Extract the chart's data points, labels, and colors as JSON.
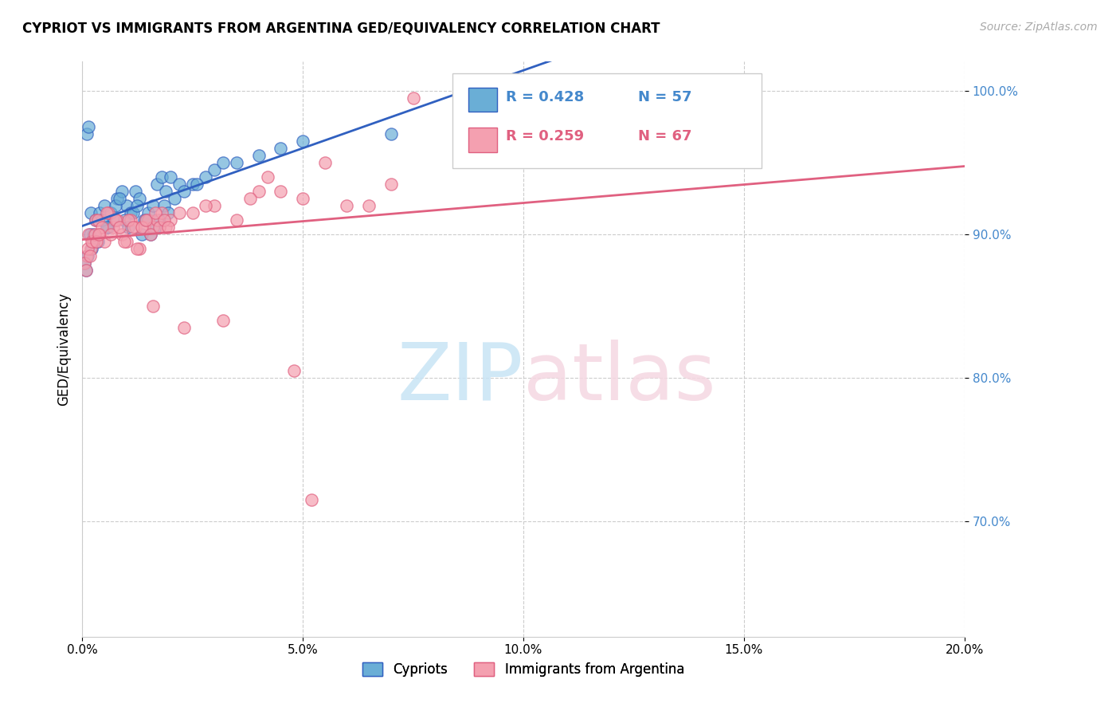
{
  "title": "CYPRIOT VS IMMIGRANTS FROM ARGENTINA GED/EQUIVALENCY CORRELATION CHART",
  "source": "Source: ZipAtlas.com",
  "ylabel": "GED/Equivalency",
  "xmin": 0.0,
  "xmax": 20.0,
  "ymin": 62.0,
  "ymax": 102.0,
  "legend_r1": "R = 0.428",
  "legend_n1": "N = 57",
  "legend_r2": "R = 0.259",
  "legend_n2": "N = 67",
  "legend_label1": "Cypriots",
  "legend_label2": "Immigrants from Argentina",
  "color_blue": "#6aaed6",
  "color_pink": "#f4a0b0",
  "color_blue_line": "#3060c0",
  "color_pink_line": "#e06080",
  "color_blue_text": "#4488cc",
  "color_pink_text": "#e06080",
  "grid_color": "#cccccc",
  "background_color": "#ffffff",
  "cypriots_x": [
    0.2,
    0.3,
    0.4,
    0.5,
    0.6,
    0.7,
    0.8,
    0.9,
    1.0,
    1.1,
    1.2,
    1.3,
    1.4,
    1.5,
    1.6,
    1.7,
    1.8,
    1.9,
    2.0,
    2.2,
    2.5,
    2.8,
    3.0,
    3.5,
    4.0,
    0.1,
    0.15,
    0.25,
    0.35,
    0.45,
    0.55,
    0.65,
    0.75,
    0.85,
    0.95,
    1.05,
    1.15,
    1.25,
    1.35,
    1.45,
    1.55,
    1.65,
    1.75,
    1.85,
    1.95,
    2.1,
    2.3,
    2.6,
    3.2,
    4.5,
    5.0,
    0.05,
    0.08,
    0.12,
    0.18,
    0.22,
    7.0
  ],
  "cypriots_y": [
    91.5,
    91.0,
    91.5,
    92.0,
    90.5,
    91.0,
    92.5,
    93.0,
    92.0,
    91.5,
    93.0,
    92.5,
    91.0,
    91.5,
    92.0,
    93.5,
    94.0,
    93.0,
    94.0,
    93.5,
    93.5,
    94.0,
    94.5,
    95.0,
    95.5,
    97.0,
    97.5,
    90.0,
    89.5,
    91.0,
    90.5,
    91.5,
    92.0,
    92.5,
    91.0,
    90.5,
    91.5,
    92.0,
    90.0,
    91.0,
    90.0,
    90.5,
    91.0,
    92.0,
    91.5,
    92.5,
    93.0,
    93.5,
    95.0,
    96.0,
    96.5,
    88.0,
    87.5,
    88.5,
    90.0,
    89.0,
    97.0
  ],
  "argentina_x": [
    0.1,
    0.2,
    0.3,
    0.4,
    0.5,
    0.6,
    0.7,
    0.8,
    0.9,
    1.0,
    1.1,
    1.2,
    1.3,
    1.4,
    1.5,
    1.6,
    1.7,
    1.8,
    1.9,
    2.0,
    2.5,
    3.0,
    3.5,
    4.0,
    5.0,
    6.0,
    7.0,
    0.15,
    0.25,
    0.35,
    0.45,
    0.55,
    0.65,
    0.75,
    0.85,
    0.95,
    1.05,
    1.15,
    1.25,
    1.35,
    1.45,
    1.55,
    1.65,
    1.75,
    1.85,
    1.95,
    2.2,
    2.8,
    3.8,
    4.5,
    0.05,
    0.08,
    0.12,
    0.18,
    0.22,
    0.28,
    0.32,
    0.38,
    5.5,
    4.2,
    2.3,
    1.6,
    3.2,
    5.2,
    4.8,
    6.5,
    7.5
  ],
  "argentina_y": [
    88.5,
    89.0,
    91.0,
    90.0,
    89.5,
    91.5,
    90.5,
    91.0,
    90.0,
    89.5,
    91.0,
    90.5,
    89.0,
    90.5,
    91.0,
    90.5,
    91.0,
    91.5,
    90.5,
    91.0,
    91.5,
    92.0,
    91.0,
    93.0,
    92.5,
    92.0,
    93.5,
    90.0,
    89.5,
    91.0,
    90.5,
    91.5,
    90.0,
    91.0,
    90.5,
    89.5,
    91.0,
    90.5,
    89.0,
    90.5,
    91.0,
    90.0,
    91.5,
    90.5,
    91.0,
    90.5,
    91.5,
    92.0,
    92.5,
    93.0,
    88.0,
    87.5,
    89.0,
    88.5,
    89.5,
    90.0,
    89.5,
    90.0,
    95.0,
    94.0,
    83.5,
    85.0,
    84.0,
    71.5,
    80.5,
    92.0,
    99.5
  ]
}
